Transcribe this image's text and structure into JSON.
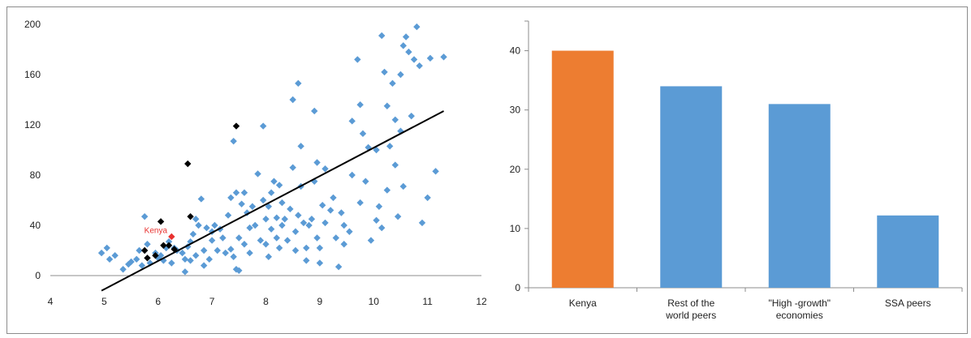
{
  "chart_data": [
    {
      "type": "scatter",
      "xlim": [
        4,
        12
      ],
      "ylim": [
        0,
        200
      ],
      "x_ticks": [
        "4",
        "5",
        "6",
        "7",
        "8",
        "9",
        "10",
        "11",
        "12"
      ],
      "y_ticks": [
        "0",
        "40",
        "80",
        "120",
        "160",
        "200"
      ],
      "grid": false,
      "colors": {
        "blue": "#5b9bd5",
        "black": "#000000",
        "highlight": "#e8312f",
        "trend": "#000000"
      },
      "annotation": {
        "text": "Kenya",
        "x": 6.2,
        "y": 30
      },
      "trendline": {
        "x": [
          4.95,
          11.3
        ],
        "y": [
          -12,
          131
        ]
      },
      "series": [
        {
          "color": "blue",
          "points": [
            [
              4.95,
              18
            ],
            [
              5.05,
              22
            ],
            [
              5.1,
              13
            ],
            [
              5.2,
              16
            ],
            [
              5.35,
              5
            ],
            [
              5.45,
              9
            ],
            [
              5.5,
              11
            ],
            [
              5.6,
              13
            ],
            [
              5.65,
              20
            ],
            [
              5.7,
              8
            ],
            [
              5.75,
              47
            ],
            [
              5.8,
              25
            ],
            [
              5.85,
              10
            ],
            [
              5.95,
              18
            ],
            [
              6.0,
              14
            ],
            [
              6.05,
              16
            ],
            [
              6.1,
              12
            ],
            [
              6.15,
              22
            ],
            [
              6.2,
              27
            ],
            [
              6.25,
              10
            ],
            [
              6.3,
              22
            ],
            [
              6.35,
              20
            ],
            [
              6.45,
              18
            ],
            [
              6.5,
              3
            ],
            [
              6.5,
              13
            ],
            [
              6.55,
              23
            ],
            [
              6.6,
              12
            ],
            [
              6.6,
              27
            ],
            [
              6.65,
              33
            ],
            [
              6.7,
              16
            ],
            [
              6.75,
              40
            ],
            [
              6.8,
              61
            ],
            [
              6.85,
              8
            ],
            [
              6.9,
              38
            ],
            [
              6.95,
              13
            ],
            [
              7.0,
              28
            ],
            [
              7.05,
              40
            ],
            [
              7.1,
              20
            ],
            [
              7.15,
              37
            ],
            [
              7.2,
              30
            ],
            [
              7.25,
              18
            ],
            [
              7.3,
              48
            ],
            [
              7.35,
              21
            ],
            [
              7.4,
              107
            ],
            [
              7.4,
              15
            ],
            [
              7.45,
              5
            ],
            [
              7.5,
              4
            ],
            [
              7.45,
              66
            ],
            [
              7.5,
              30
            ],
            [
              7.55,
              57
            ],
            [
              7.6,
              66
            ],
            [
              7.6,
              25
            ],
            [
              7.65,
              50
            ],
            [
              7.7,
              38
            ],
            [
              7.75,
              55
            ],
            [
              7.8,
              40
            ],
            [
              7.85,
              81
            ],
            [
              7.9,
              28
            ],
            [
              7.95,
              119
            ],
            [
              7.95,
              60
            ],
            [
              8.0,
              25
            ],
            [
              8.0,
              45
            ],
            [
              8.05,
              15
            ],
            [
              8.05,
              55
            ],
            [
              8.1,
              37
            ],
            [
              8.1,
              66
            ],
            [
              8.15,
              75
            ],
            [
              8.2,
              46
            ],
            [
              8.2,
              30
            ],
            [
              8.25,
              22
            ],
            [
              8.3,
              58
            ],
            [
              8.3,
              40
            ],
            [
              8.35,
              45
            ],
            [
              8.4,
              28
            ],
            [
              8.45,
              53
            ],
            [
              8.5,
              140
            ],
            [
              8.5,
              86
            ],
            [
              8.55,
              35
            ],
            [
              8.6,
              153
            ],
            [
              8.6,
              48
            ],
            [
              8.65,
              103
            ],
            [
              8.65,
              71
            ],
            [
              8.7,
              42
            ],
            [
              8.75,
              12
            ],
            [
              8.75,
              22
            ],
            [
              8.8,
              40
            ],
            [
              8.85,
              45
            ],
            [
              8.9,
              131
            ],
            [
              8.9,
              75
            ],
            [
              8.95,
              90
            ],
            [
              8.95,
              30
            ],
            [
              9.0,
              10
            ],
            [
              9.0,
              22
            ],
            [
              9.05,
              56
            ],
            [
              9.1,
              85
            ],
            [
              9.2,
              52
            ],
            [
              9.25,
              62
            ],
            [
              9.3,
              30
            ],
            [
              9.35,
              7
            ],
            [
              9.4,
              50
            ],
            [
              9.45,
              25
            ],
            [
              9.55,
              35
            ],
            [
              9.6,
              123
            ],
            [
              9.6,
              80
            ],
            [
              9.7,
              172
            ],
            [
              9.75,
              136
            ],
            [
              9.8,
              113
            ],
            [
              9.85,
              75
            ],
            [
              9.9,
              102
            ],
            [
              9.95,
              28
            ],
            [
              10.05,
              44
            ],
            [
              10.1,
              55
            ],
            [
              10.15,
              191
            ],
            [
              10.15,
              38
            ],
            [
              10.2,
              162
            ],
            [
              10.25,
              135
            ],
            [
              10.3,
              103
            ],
            [
              10.35,
              153
            ],
            [
              10.4,
              124
            ],
            [
              10.45,
              47
            ],
            [
              10.5,
              160
            ],
            [
              10.5,
              115
            ],
            [
              10.55,
              183
            ],
            [
              10.6,
              190
            ],
            [
              10.65,
              178
            ],
            [
              10.7,
              127
            ],
            [
              10.75,
              172
            ],
            [
              10.8,
              198
            ],
            [
              10.85,
              167
            ],
            [
              10.9,
              42
            ],
            [
              11.0,
              62
            ],
            [
              11.05,
              173
            ],
            [
              11.15,
              83
            ],
            [
              11.3,
              174
            ],
            [
              9.75,
              58
            ],
            [
              10.05,
              100
            ],
            [
              10.25,
              68
            ],
            [
              10.4,
              88
            ],
            [
              10.55,
              71
            ],
            [
              9.45,
              40
            ],
            [
              9.1,
              42
            ],
            [
              8.55,
              20
            ],
            [
              8.25,
              72
            ],
            [
              7.7,
              18
            ],
            [
              7.35,
              62
            ],
            [
              7.0,
              35
            ],
            [
              6.85,
              20
            ],
            [
              6.7,
              45
            ]
          ]
        },
        {
          "color": "black",
          "points": [
            [
              5.75,
              20
            ],
            [
              5.8,
              14
            ],
            [
              5.95,
              16
            ],
            [
              6.05,
              43
            ],
            [
              6.1,
              24
            ],
            [
              6.2,
              24
            ],
            [
              6.3,
              21
            ],
            [
              6.55,
              89
            ],
            [
              6.6,
              47
            ],
            [
              7.45,
              119
            ]
          ]
        },
        {
          "color": "highlight",
          "points": [
            [
              6.25,
              31
            ]
          ]
        }
      ]
    },
    {
      "type": "bar",
      "categories": [
        "Kenya",
        "Rest of the world peers",
        "\"High-growth\" economies",
        "SSA peers"
      ],
      "category_lines": [
        [
          "Kenya"
        ],
        [
          "Rest of the",
          "world peers"
        ],
        [
          "\"High -growth\"",
          "economies"
        ],
        [
          "SSA peers"
        ]
      ],
      "values": [
        40,
        34,
        31,
        12.2
      ],
      "bar_colors": [
        "#ed7d31",
        "#5b9bd5",
        "#5b9bd5",
        "#5b9bd5"
      ],
      "ylim": [
        0,
        45
      ],
      "y_ticks": [
        "0",
        "10",
        "20",
        "30",
        "40"
      ],
      "grid": false
    }
  ]
}
